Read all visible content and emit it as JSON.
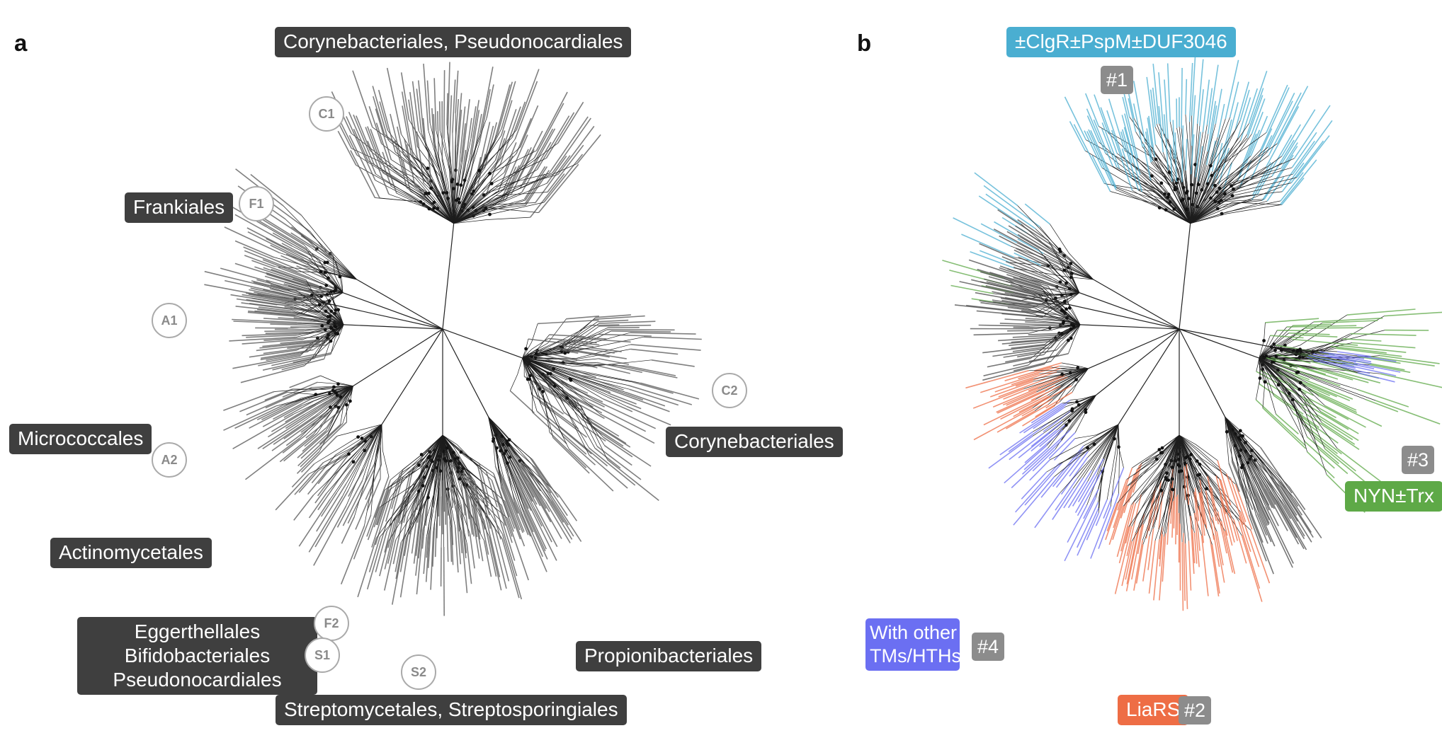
{
  "panels": {
    "a": {
      "letter": "a",
      "clade_labels": {
        "top": "Corynebacteriales, Pseudonocardiales",
        "frankiales": "Frankiales",
        "micrococcales": "Micrococcales",
        "actinomycetales": "Actinomycetales",
        "eggerthellales": "Eggerthellales",
        "bifidobacteriales": "Bifidobacteriales",
        "pseudonocardiales": "Pseudonocardiales",
        "streptomycetales": "Streptomycetales, Streptosporingiales",
        "propionibacteriales": "Propionibacteriales",
        "corynebacteriales": "Corynebacteriales"
      },
      "subclades": {
        "c1": "C1",
        "f1": "F1",
        "a1": "A1",
        "a2": "A2",
        "c2": "C2",
        "f2": "F2",
        "s1": "S1",
        "s2": "S2"
      }
    },
    "b": {
      "letter": "b",
      "groups": {
        "g1": {
          "label": "±ClgR±PspM±DUF3046",
          "num": "#1",
          "color": "#4aaed1"
        },
        "g2": {
          "label": "LiaRS",
          "num": "#2",
          "color": "#ee6d45"
        },
        "g3": {
          "label": "NYN±Trx",
          "num": "#3",
          "color": "#5ea947"
        },
        "g4": {
          "label_line1": "With other",
          "label_line2": "TMs/HTHs",
          "num": "#4",
          "color": "#6b6ff2"
        }
      },
      "neutral_color": "#4a4a4a"
    }
  }
}
